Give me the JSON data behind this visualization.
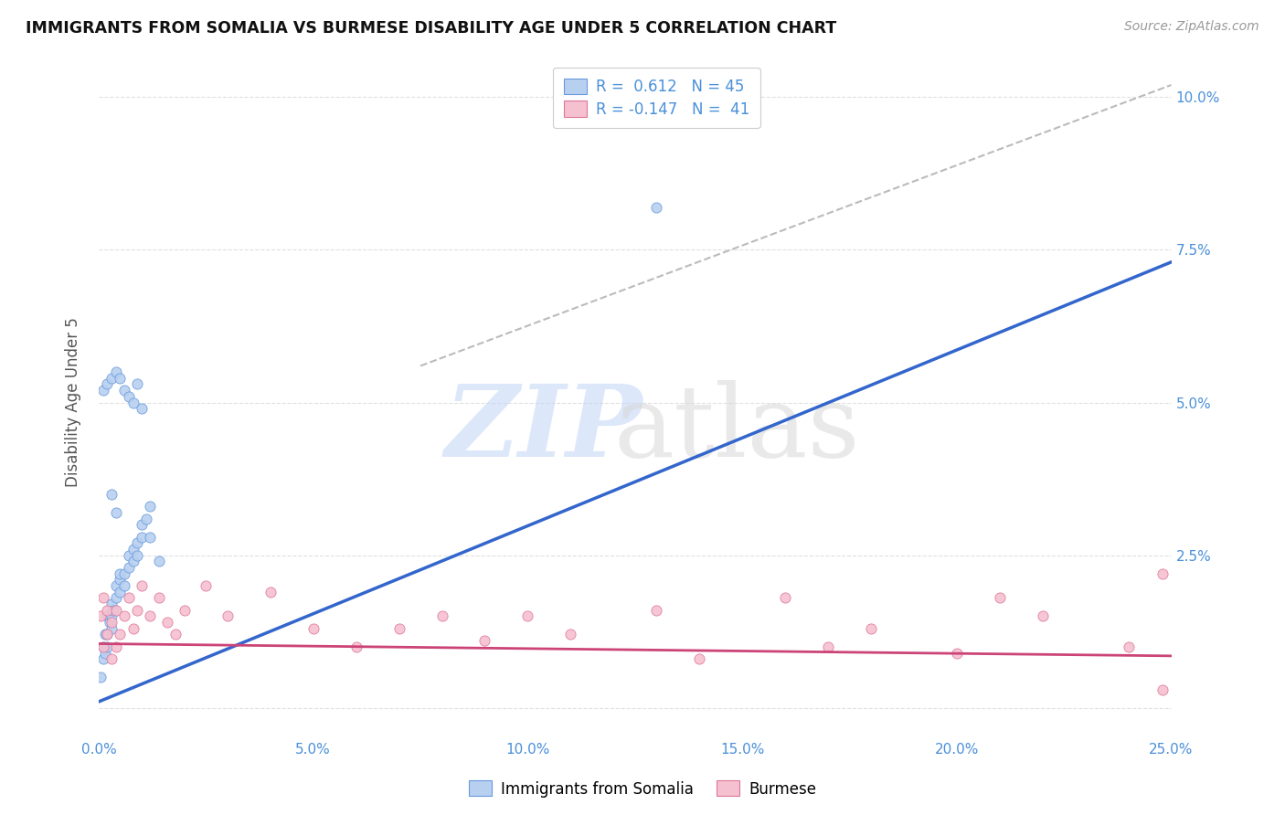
{
  "title": "IMMIGRANTS FROM SOMALIA VS BURMESE DISABILITY AGE UNDER 5 CORRELATION CHART",
  "source": "Source: ZipAtlas.com",
  "ylabel": "Disability Age Under 5",
  "xlim": [
    0.0,
    0.25
  ],
  "ylim": [
    -0.005,
    0.105
  ],
  "background_color": "#ffffff",
  "grid_color": "#e0e0e0",
  "somalia_fill_color": "#b8d0f0",
  "somalia_edge_color": "#6699dd",
  "burmese_fill_color": "#f5c0d0",
  "burmese_edge_color": "#dd7799",
  "somalia_line_color": "#3366cc",
  "burmese_line_color": "#cc4477",
  "trend_line_color": "#bbbbbb",
  "somalia_R": 0.612,
  "somalia_N": 45,
  "burmese_R": -0.147,
  "burmese_N": 41,
  "somalia_x": [
    0.0005,
    0.001,
    0.001,
    0.0015,
    0.0015,
    0.002,
    0.002,
    0.002,
    0.0025,
    0.003,
    0.003,
    0.003,
    0.0035,
    0.004,
    0.004,
    0.005,
    0.005,
    0.005,
    0.006,
    0.006,
    0.007,
    0.007,
    0.008,
    0.008,
    0.009,
    0.009,
    0.01,
    0.01,
    0.011,
    0.012,
    0.001,
    0.002,
    0.003,
    0.004,
    0.005,
    0.006,
    0.007,
    0.008,
    0.009,
    0.01,
    0.003,
    0.004,
    0.012,
    0.014,
    0.13
  ],
  "somalia_y": [
    0.005,
    0.008,
    0.01,
    0.009,
    0.012,
    0.01,
    0.012,
    0.015,
    0.014,
    0.013,
    0.015,
    0.017,
    0.016,
    0.018,
    0.02,
    0.019,
    0.021,
    0.022,
    0.02,
    0.022,
    0.023,
    0.025,
    0.024,
    0.026,
    0.025,
    0.027,
    0.028,
    0.03,
    0.031,
    0.033,
    0.052,
    0.053,
    0.054,
    0.055,
    0.054,
    0.052,
    0.051,
    0.05,
    0.053,
    0.049,
    0.035,
    0.032,
    0.028,
    0.024,
    0.082
  ],
  "burmese_x": [
    0.0005,
    0.001,
    0.001,
    0.002,
    0.002,
    0.003,
    0.003,
    0.004,
    0.004,
    0.005,
    0.006,
    0.007,
    0.008,
    0.009,
    0.01,
    0.012,
    0.014,
    0.016,
    0.018,
    0.02,
    0.025,
    0.03,
    0.04,
    0.05,
    0.06,
    0.07,
    0.08,
    0.09,
    0.1,
    0.11,
    0.13,
    0.14,
    0.16,
    0.17,
    0.18,
    0.2,
    0.21,
    0.22,
    0.24,
    0.248,
    0.248
  ],
  "burmese_y": [
    0.015,
    0.018,
    0.01,
    0.016,
    0.012,
    0.014,
    0.008,
    0.01,
    0.016,
    0.012,
    0.015,
    0.018,
    0.013,
    0.016,
    0.02,
    0.015,
    0.018,
    0.014,
    0.012,
    0.016,
    0.02,
    0.015,
    0.019,
    0.013,
    0.01,
    0.013,
    0.015,
    0.011,
    0.015,
    0.012,
    0.016,
    0.008,
    0.018,
    0.01,
    0.013,
    0.009,
    0.018,
    0.015,
    0.01,
    0.022,
    0.003
  ],
  "somalia_trend_x": [
    0.0,
    0.25
  ],
  "somalia_trend_y": [
    0.001,
    0.073
  ],
  "burmese_trend_x": [
    0.0,
    0.25
  ],
  "burmese_trend_y": [
    0.0105,
    0.0085
  ],
  "dashed_line_x": [
    0.075,
    0.25
  ],
  "dashed_line_y": [
    0.056,
    0.102
  ],
  "xticks": [
    0.0,
    0.05,
    0.1,
    0.15,
    0.2,
    0.25
  ],
  "xtick_labels": [
    "0.0%",
    "5.0%",
    "10.0%",
    "15.0%",
    "20.0%",
    "25.0%"
  ],
  "yticks_right": [
    0.0,
    0.025,
    0.05,
    0.075,
    0.1
  ],
  "ytick_labels_right": [
    "",
    "2.5%",
    "5.0%",
    "7.5%",
    "10.0%"
  ]
}
